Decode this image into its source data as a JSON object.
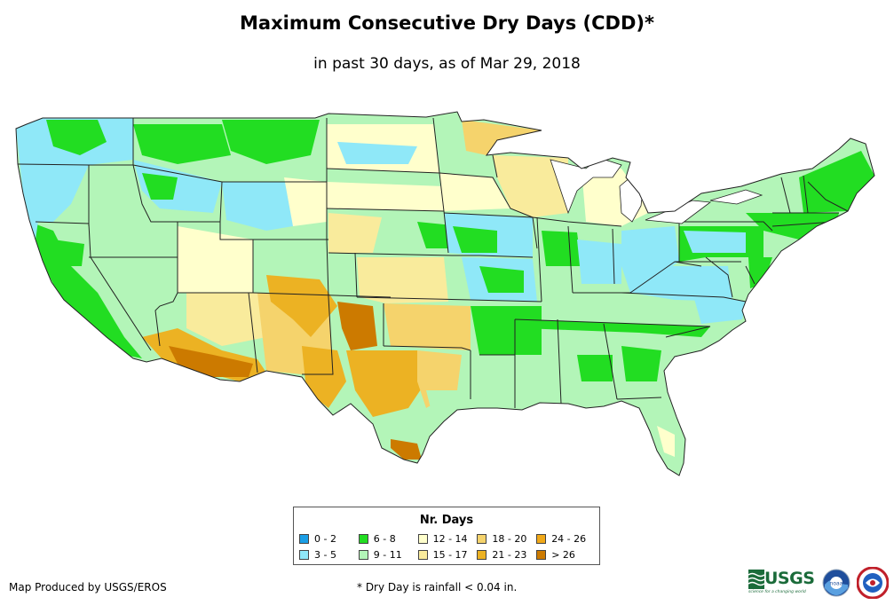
{
  "title": "Maximum Consecutive Dry Days (CDD)*",
  "subtitle": "in past 30 days, as of Mar 29, 2018",
  "legend": {
    "title": "Nr. Days",
    "items": [
      {
        "label": "0 - 2",
        "color": "#1a9ee6"
      },
      {
        "label": "6 - 8",
        "color": "#22dd22"
      },
      {
        "label": "12 - 14",
        "color": "#ffffcc"
      },
      {
        "label": "18 - 20",
        "color": "#f5d36c"
      },
      {
        "label": "24 - 26",
        "color": "#f0a818"
      },
      {
        "label": "3 - 5",
        "color": "#8fe8f8"
      },
      {
        "label": "9 - 11",
        "color": "#b3f5b8"
      },
      {
        "label": "15 - 17",
        "color": "#f9eb9c"
      },
      {
        "label": "21 - 23",
        "color": "#ecb223"
      },
      {
        "label": "> 26",
        "color": "#cc7a00"
      }
    ]
  },
  "credit": "Map Produced by USGS/EROS",
  "footnote": "* Dry Day is rainfall < 0.04 in.",
  "logos": {
    "usgs": "USGS",
    "usgs_tagline": "science for a changing world",
    "noaa": "noaa",
    "nws": "NATIONAL WEATHER SERVICE"
  },
  "colors": {
    "state_border": "#222222",
    "base_fill": "#b3f5b8"
  }
}
